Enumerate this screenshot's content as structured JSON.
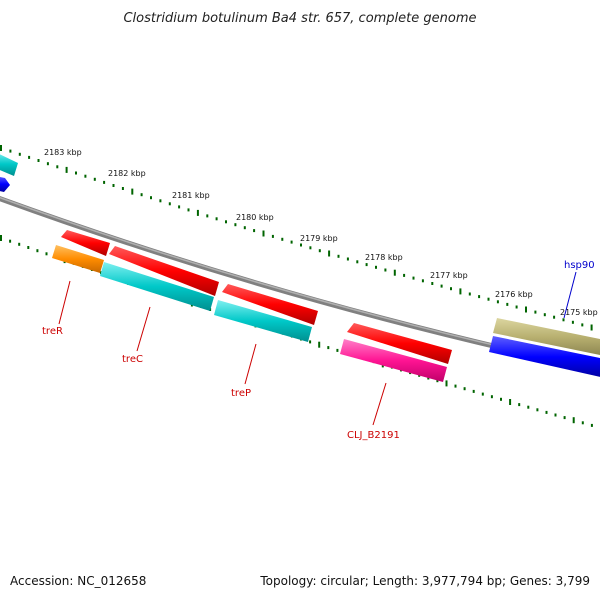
{
  "title": "Clostridium botulinum Ba4 str. 657, complete genome",
  "footer": {
    "accession": "Accession: NC_012658",
    "summary": "Topology: circular; Length: 3,977,794 bp; Genes: 3,799"
  },
  "scale_labels": [
    "2183 kbp",
    "2182 kbp",
    "2181 kbp",
    "2180 kbp",
    "2179 kbp",
    "2178 kbp",
    "2177 kbp",
    "2176 kbp",
    "2175 kbp"
  ],
  "genes": [
    {
      "label": "treR",
      "strand": "minus",
      "color": "#ff8c00"
    },
    {
      "label": "treC",
      "strand": "minus",
      "color": "#00c8c8"
    },
    {
      "label": "treP",
      "strand": "minus",
      "color": "#00c8c8"
    },
    {
      "label": "CLJ_B2191",
      "strand": "minus",
      "color": "#ff1493"
    },
    {
      "label": "hsp90",
      "strand": "plus",
      "color": "#0000ff"
    }
  ],
  "colors": {
    "cds": "#ff0000",
    "backbone": "#808080",
    "ticks": "#006400",
    "label_red": "#cc0000",
    "label_blue": "#0000cc",
    "olive": "#b8b070"
  }
}
